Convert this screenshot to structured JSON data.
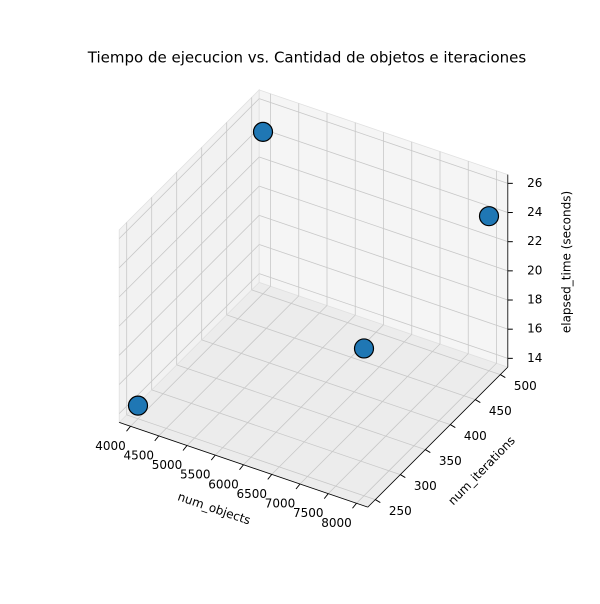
{
  "chart_data": {
    "type": "scatter3d",
    "title": "Tiempo de ejecucion vs. Cantidad de objetos e iteraciones",
    "xlabel": "num_objects",
    "ylabel": "num_iterations",
    "zlabel": "elapsed_time (seconds)",
    "x": [
      4000,
      4000,
      8000,
      8000
    ],
    "y": [
      250,
      500,
      500,
      250
    ],
    "z": [
      14.3,
      24.5,
      24,
      23.5
    ],
    "color": "#1f77b4",
    "xlim": [
      3800,
      8200
    ],
    "ylim": [
      235,
      515
    ],
    "zlim": [
      13.4,
      26.6
    ],
    "xticks": [
      4000,
      4500,
      5000,
      5500,
      6000,
      6500,
      7000,
      7500,
      8000
    ],
    "yticks": [
      250,
      300,
      350,
      400,
      450,
      500
    ],
    "zticks": [
      14,
      16,
      18,
      20,
      22,
      24,
      26
    ],
    "grid": true
  }
}
